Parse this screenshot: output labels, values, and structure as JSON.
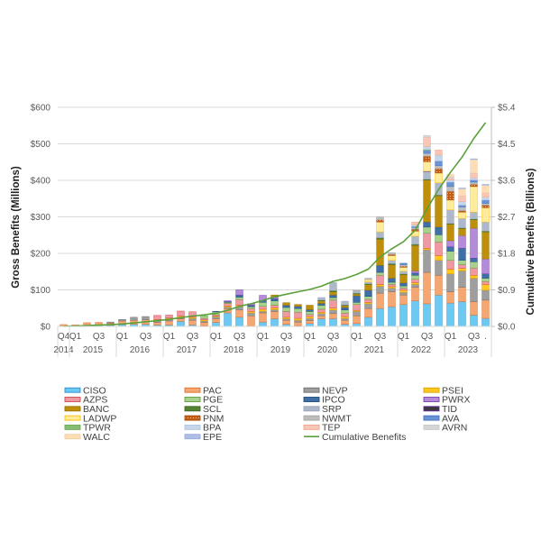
{
  "chart_data": {
    "type": "bar",
    "stacked": true,
    "ylabel": "Gross Benefits (Millions)",
    "ylabel_right": "Cumulative Benefits (Billions)",
    "ylim": [
      0,
      600
    ],
    "ylim_right": [
      0,
      5.4
    ],
    "yticks": [
      "$0",
      "$100",
      "$200",
      "$300",
      "$400",
      "$500",
      "$600"
    ],
    "yticks_right": [
      "$0.0",
      "$0.9",
      "$1.8",
      "$2.7",
      "$3.6",
      "$4.5",
      "$5.4"
    ],
    "grid": true,
    "legend_position": "bottom",
    "categories": [
      "Q4",
      "Q1",
      "",
      "Q3",
      "",
      "Q1",
      "",
      "Q3",
      "",
      "Q1",
      "",
      "Q3",
      "",
      "Q1",
      "",
      "Q3",
      "",
      "Q1",
      "",
      "Q3",
      "",
      "Q1",
      "",
      "Q3",
      "",
      "Q1",
      "",
      "Q3",
      "",
      "Q1",
      "",
      "Q3",
      "",
      "Q1",
      "",
      "Q3",
      "."
    ],
    "category_groups": [
      {
        "label": "2014",
        "count": 1
      },
      {
        "label": "2015",
        "count": 4
      },
      {
        "label": "2016",
        "count": 4
      },
      {
        "label": "2017",
        "count": 4
      },
      {
        "label": "2018",
        "count": 4
      },
      {
        "label": "2019",
        "count": 4
      },
      {
        "label": "2020",
        "count": 4
      },
      {
        "label": "2021",
        "count": 4
      },
      {
        "label": "2022",
        "count": 4
      },
      {
        "label": "2023",
        "count": 4
      }
    ],
    "series": [
      {
        "name": "CISO",
        "color": "#6CCAF2",
        "stroke": "#2B8ED1",
        "values": [
          1,
          1,
          3,
          3,
          3,
          5,
          6,
          6,
          4,
          4,
          14,
          4,
          2,
          11,
          37,
          25,
          1,
          12,
          21,
          6,
          2,
          8,
          21,
          21,
          6,
          8,
          25,
          49,
          54,
          60,
          70,
          62,
          86,
          64,
          68,
          31,
          22
        ]
      },
      {
        "name": "PAC",
        "color": "#F4A673",
        "stroke": "#E0702A",
        "values": [
          4,
          3,
          7,
          8,
          6,
          10,
          11,
          12,
          7,
          11,
          7,
          13,
          9,
          10,
          12,
          20,
          28,
          25,
          20,
          11,
          10,
          8,
          8,
          14,
          11,
          21,
          24,
          42,
          41,
          26,
          37,
          86,
          54,
          31,
          39,
          37,
          50
        ]
      },
      {
        "name": "NEVP",
        "color": "#9E9E9E",
        "stroke": "#6E6E6E",
        "values": [
          0,
          0,
          0,
          0,
          3,
          4,
          8,
          9,
          6,
          6,
          4,
          5,
          4,
          5,
          4,
          9,
          8,
          4,
          5,
          4,
          5,
          6,
          6,
          10,
          5,
          12,
          13,
          19,
          10,
          7,
          8,
          62,
          41,
          49,
          45,
          64,
          27
        ]
      },
      {
        "name": "PSEI",
        "color": "#FFC620",
        "stroke": "#D9A300",
        "values": [
          0,
          0,
          0,
          0,
          0,
          0,
          0,
          0,
          2,
          2,
          3,
          3,
          3,
          2,
          3,
          4,
          4,
          6,
          5,
          4,
          5,
          5,
          4,
          5,
          5,
          3,
          4,
          5,
          4,
          6,
          5,
          4,
          13,
          13,
          7,
          8,
          16
        ]
      },
      {
        "name": "AZPS",
        "color": "#EE9AA3",
        "stroke": "#D2474F",
        "values": [
          0,
          0,
          0,
          0,
          0,
          0,
          0,
          0,
          11,
          8,
          14,
          15,
          4,
          4,
          7,
          16,
          8,
          8,
          7,
          16,
          17,
          6,
          8,
          22,
          9,
          16,
          8,
          25,
          6,
          6,
          9,
          41,
          37,
          24,
          10,
          20,
          8
        ]
      },
      {
        "name": "PGE",
        "color": "#A9D18E",
        "stroke": "#5E9E3C",
        "values": [
          0,
          0,
          0,
          0,
          0,
          0,
          0,
          0,
          0,
          0,
          0,
          0,
          7,
          8,
          3,
          6,
          5,
          11,
          12,
          11,
          10,
          8,
          11,
          7,
          9,
          6,
          8,
          8,
          6,
          6,
          11,
          17,
          20,
          25,
          12,
          17,
          9
        ]
      },
      {
        "name": "IPCO",
        "color": "#3F6FA8",
        "stroke": "#1F4E79",
        "values": [
          0,
          0,
          0,
          0,
          0,
          0,
          0,
          0,
          0,
          0,
          0,
          0,
          0,
          1,
          2,
          6,
          4,
          5,
          6,
          6,
          6,
          5,
          5,
          7,
          7,
          18,
          17,
          19,
          11,
          8,
          6,
          14,
          21,
          12,
          33,
          10,
          12
        ]
      },
      {
        "name": "PWRX",
        "color": "#B48BD8",
        "stroke": "#7B3FB0",
        "values": [
          0,
          0,
          0,
          0,
          0,
          0,
          0,
          0,
          0,
          0,
          0,
          0,
          0,
          0,
          2,
          14,
          4,
          14,
          4,
          0,
          0,
          0,
          0,
          0,
          0,
          0,
          0,
          0,
          0,
          0,
          6,
          0,
          0,
          17,
          35,
          82,
          41
        ]
      },
      {
        "name": "BANC",
        "color": "#BE8F0A",
        "stroke": "#9C7400",
        "values": [
          0,
          0,
          0,
          0,
          0,
          0,
          0,
          0,
          0,
          0,
          0,
          0,
          0,
          0,
          0,
          0,
          0,
          0,
          6,
          7,
          5,
          12,
          7,
          9,
          5,
          5,
          16,
          72,
          37,
          23,
          70,
          115,
          86,
          45,
          19,
          23,
          74
        ]
      },
      {
        "name": "SCL",
        "color": "#548235",
        "stroke": "#3E6B25",
        "values": [
          0,
          0,
          0,
          0,
          0,
          0,
          0,
          0,
          0,
          0,
          0,
          0,
          0,
          0,
          0,
          0,
          0,
          0,
          0,
          0,
          0,
          0,
          2,
          3,
          2,
          2,
          2,
          4,
          3,
          2,
          3,
          2,
          2,
          2,
          2,
          2,
          2
        ]
      },
      {
        "name": "SRP",
        "color": "#ADB9CA",
        "stroke": "#97A5B9",
        "values": [
          0,
          0,
          0,
          0,
          0,
          0,
          0,
          0,
          0,
          0,
          0,
          0,
          0,
          0,
          0,
          0,
          0,
          0,
          0,
          0,
          0,
          0,
          7,
          22,
          10,
          6,
          5,
          16,
          9,
          7,
          22,
          21,
          33,
          37,
          26,
          19,
          25
        ]
      },
      {
        "name": "TID",
        "color": "#3A3A3A",
        "stroke": "#6A2D9E",
        "values": [
          0,
          0,
          0,
          0,
          0,
          0,
          0,
          0,
          0,
          0,
          0,
          0,
          0,
          0,
          0,
          0,
          0,
          0,
          0,
          0,
          0,
          0,
          0,
          0,
          0,
          0,
          0,
          0,
          0,
          0,
          0,
          1,
          0,
          0,
          0,
          0,
          0
        ]
      },
      {
        "name": "LADWP",
        "color": "#FFEB9C",
        "stroke": "#FFC000",
        "values": [
          0,
          0,
          0,
          0,
          0,
          0,
          0,
          0,
          0,
          0,
          0,
          0,
          0,
          0,
          0,
          0,
          0,
          0,
          0,
          0,
          0,
          0,
          0,
          0,
          0,
          0,
          6,
          27,
          13,
          11,
          14,
          26,
          27,
          27,
          17,
          70,
          39
        ]
      },
      {
        "name": "PNM",
        "color": "#C55A11",
        "stroke": "#A04A0E",
        "pattern": "dots",
        "values": [
          0,
          0,
          0,
          0,
          0,
          0,
          0,
          0,
          0,
          0,
          0,
          0,
          0,
          0,
          0,
          0,
          0,
          0,
          0,
          0,
          0,
          0,
          0,
          0,
          0,
          0,
          0,
          6,
          3,
          3,
          5,
          15,
          12,
          24,
          4,
          6,
          7
        ]
      },
      {
        "name": "NWMT",
        "color": "#BDBDBD",
        "stroke": "#A6A6A6",
        "values": [
          0,
          0,
          0,
          0,
          0,
          0,
          0,
          0,
          0,
          0,
          0,
          0,
          0,
          0,
          0,
          0,
          0,
          0,
          0,
          0,
          0,
          0,
          0,
          0,
          0,
          2,
          4,
          8,
          5,
          4,
          5,
          8,
          8,
          13,
          10,
          6,
          5
        ]
      },
      {
        "name": "AVA",
        "color": "#6A93D4",
        "stroke": "#4472C4",
        "values": [
          0,
          0,
          0,
          0,
          0,
          0,
          0,
          0,
          0,
          0,
          0,
          0,
          0,
          0,
          0,
          0,
          0,
          0,
          0,
          0,
          0,
          0,
          0,
          0,
          0,
          0,
          0,
          0,
          0,
          4,
          3,
          8,
          13,
          12,
          5,
          6,
          9
        ]
      },
      {
        "name": "TPWR",
        "color": "#86BC74",
        "stroke": "#6AAA54",
        "values": [
          0,
          0,
          0,
          0,
          0,
          0,
          0,
          0,
          0,
          0,
          0,
          0,
          0,
          0,
          0,
          0,
          0,
          0,
          0,
          0,
          0,
          0,
          0,
          0,
          0,
          0,
          0,
          0,
          0,
          0,
          0,
          2,
          0,
          0,
          0,
          0,
          0
        ]
      },
      {
        "name": "BPA",
        "color": "#C5D6EC",
        "stroke": "#B0C6E2",
        "values": [
          0,
          0,
          0,
          0,
          0,
          0,
          0,
          0,
          0,
          0,
          0,
          0,
          0,
          0,
          0,
          0,
          0,
          0,
          0,
          0,
          0,
          0,
          0,
          0,
          0,
          0,
          0,
          0,
          0,
          0,
          4,
          9,
          16,
          6,
          10,
          6,
          8
        ]
      },
      {
        "name": "TEP",
        "color": "#F8C6B4",
        "stroke": "#F2A68C",
        "values": [
          0,
          0,
          0,
          0,
          0,
          0,
          0,
          0,
          0,
          0,
          0,
          0,
          0,
          0,
          0,
          0,
          0,
          0,
          0,
          0,
          0,
          0,
          0,
          0,
          0,
          0,
          0,
          0,
          0,
          0,
          8,
          25,
          14,
          6,
          16,
          13,
          12
        ]
      },
      {
        "name": "AVRN",
        "color": "#D6D6D6",
        "stroke": "#C8C8C8",
        "values": [
          0,
          0,
          0,
          0,
          0,
          0,
          0,
          0,
          0,
          0,
          0,
          0,
          0,
          0,
          0,
          0,
          0,
          0,
          0,
          0,
          0,
          0,
          0,
          0,
          0,
          0,
          0,
          0,
          0,
          0,
          0,
          5,
          0,
          4,
          0,
          0,
          0
        ]
      },
      {
        "name": "WALC",
        "color": "#FCDDB5",
        "stroke": "#F5CFA0",
        "values": [
          0,
          0,
          0,
          0,
          0,
          0,
          0,
          0,
          0,
          0,
          0,
          0,
          0,
          0,
          0,
          0,
          0,
          0,
          0,
          0,
          0,
          0,
          0,
          0,
          0,
          0,
          0,
          0,
          0,
          0,
          0,
          0,
          0,
          6,
          19,
          37,
          21
        ]
      },
      {
        "name": "EPE",
        "color": "#AFBEE6",
        "stroke": "#9AACDC",
        "values": [
          0,
          0,
          0,
          0,
          0,
          0,
          0,
          0,
          0,
          0,
          0,
          0,
          0,
          0,
          0,
          0,
          0,
          0,
          0,
          0,
          0,
          0,
          0,
          0,
          0,
          0,
          0,
          0,
          0,
          0,
          0,
          0,
          0,
          0,
          2,
          2,
          2
        ]
      }
    ],
    "line_series": {
      "name": "Cumulative Benefits",
      "axis": "right",
      "color": "#5BA03A",
      "values": [
        0.005,
        0.009,
        0.019,
        0.03,
        0.042,
        0.061,
        0.086,
        0.113,
        0.143,
        0.174,
        0.216,
        0.256,
        0.285,
        0.326,
        0.396,
        0.496,
        0.558,
        0.643,
        0.729,
        0.794,
        0.854,
        0.912,
        0.991,
        1.111,
        1.18,
        1.279,
        1.411,
        1.711,
        1.913,
        2.086,
        2.372,
        2.895,
        3.378,
        3.795,
        4.174,
        4.633,
        5.022
      ]
    }
  }
}
